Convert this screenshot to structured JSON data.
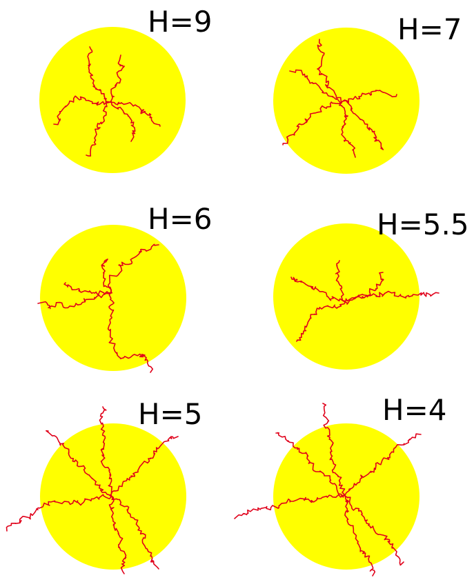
{
  "colors": {
    "disc": "#ffff00",
    "path": "#e0001a",
    "text": "#000000",
    "background": "#ffffff"
  },
  "panels": [
    {
      "label": "H=9",
      "arms": 6
    },
    {
      "label": "H=7",
      "arms": 6
    },
    {
      "label": "H=6",
      "arms": 5
    },
    {
      "label": "H=5.5",
      "arms": 5
    },
    {
      "label": "H=5",
      "arms": 6
    },
    {
      "label": "H=4",
      "arms": 6
    }
  ]
}
